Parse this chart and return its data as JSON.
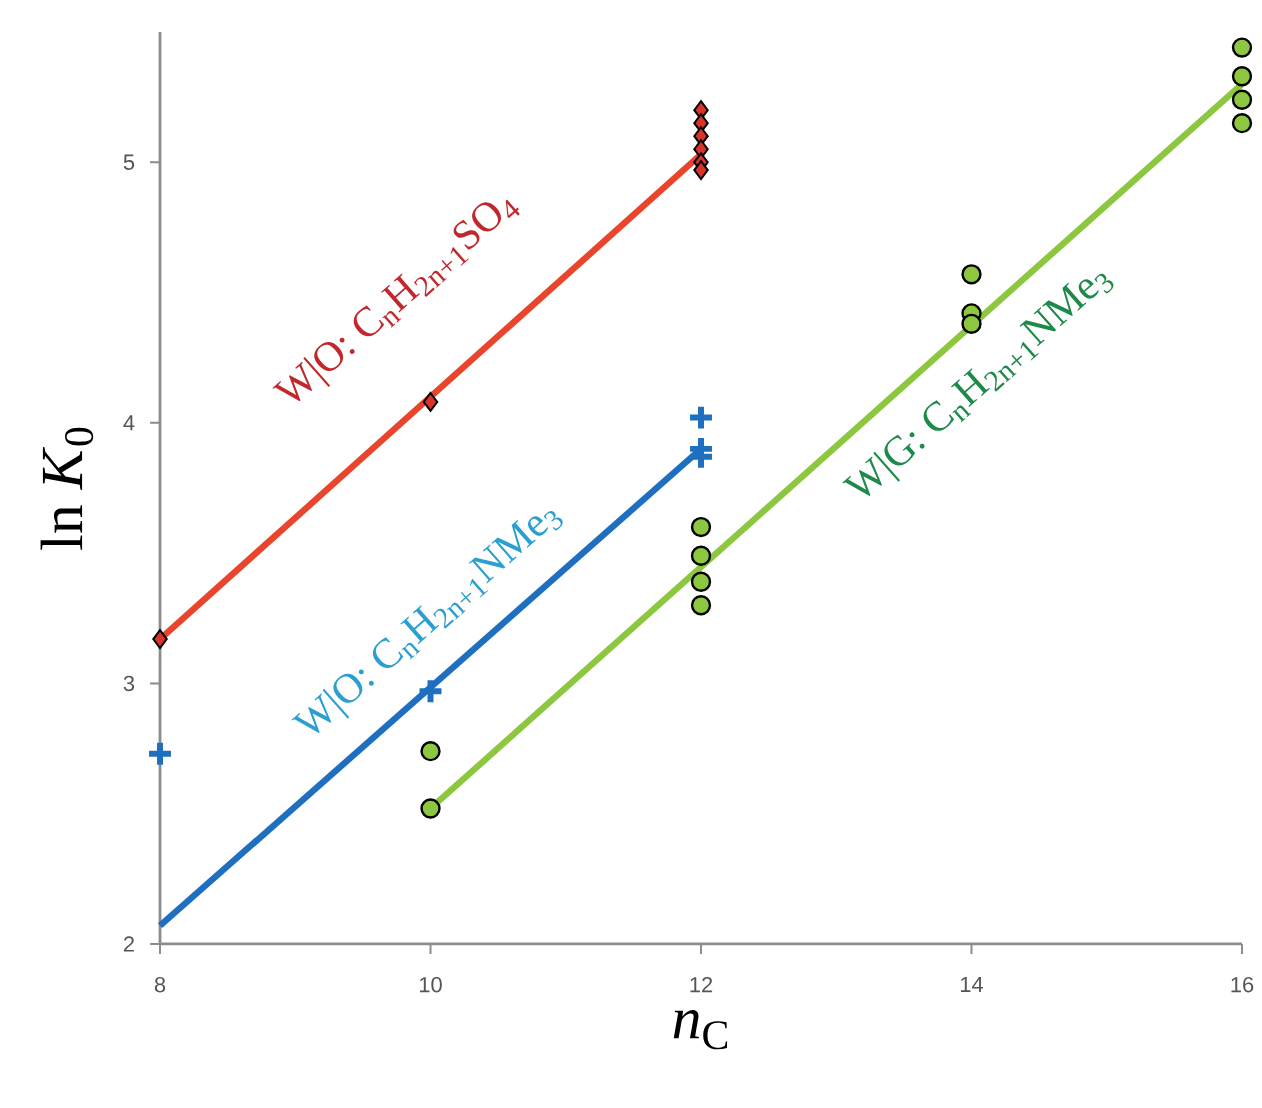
{
  "chart_data": {
    "type": "scatter",
    "xlabel": "*n*$_{C}$",
    "ylabel": "ln *K*$_{0}$",
    "xlim": [
      8,
      16
    ],
    "ylim": [
      2,
      5.5
    ],
    "xticks": [
      8,
      10,
      12,
      14,
      16
    ],
    "yticks": [
      2,
      3,
      4,
      5
    ],
    "grid": false,
    "series": [
      {
        "type": "line",
        "x": [
          8,
          12
        ],
        "values": [
          3.17,
          5.03
        ],
        "color": "#e8452c",
        "marker": "none"
      },
      {
        "type": "line",
        "x": [
          8,
          12
        ],
        "values": [
          2.07,
          3.9
        ],
        "color": "#1f6fc0",
        "marker": "none"
      },
      {
        "type": "line",
        "x": [
          10,
          16
        ],
        "values": [
          2.52,
          5.3
        ],
        "color": "#8dc63f",
        "marker": "none"
      },
      {
        "x": [
          8,
          10,
          12,
          12,
          12,
          12,
          12,
          12
        ],
        "values": [
          3.17,
          4.08,
          5.2,
          5.15,
          5.1,
          5.05,
          5.0,
          4.97
        ],
        "color": "#d9342b",
        "marker": "diamond"
      },
      {
        "x": [
          8,
          10,
          12,
          12,
          12
        ],
        "values": [
          2.73,
          2.97,
          4.02,
          3.9,
          3.87
        ],
        "color": "#1f6fc0",
        "marker": "cross"
      },
      {
        "x": [
          10,
          10,
          12,
          12,
          12,
          12,
          14,
          14,
          14,
          16,
          16,
          16,
          16
        ],
        "values": [
          2.74,
          2.52,
          3.6,
          3.49,
          3.39,
          3.3,
          4.57,
          4.42,
          4.38,
          5.44,
          5.33,
          5.24,
          5.15
        ],
        "color": "#8dc63f",
        "marker": "circle"
      }
    ],
    "annotations": [
      "W|O:  C$_{n}$H$_{2n+1}$SO$_{4}$",
      "W|O:  C$_{n}$H$_{2n+1}$NMe$_{3}$",
      "W|G:  C$_{n}$H$_{2n+1}$NMe$_{3}$"
    ]
  }
}
